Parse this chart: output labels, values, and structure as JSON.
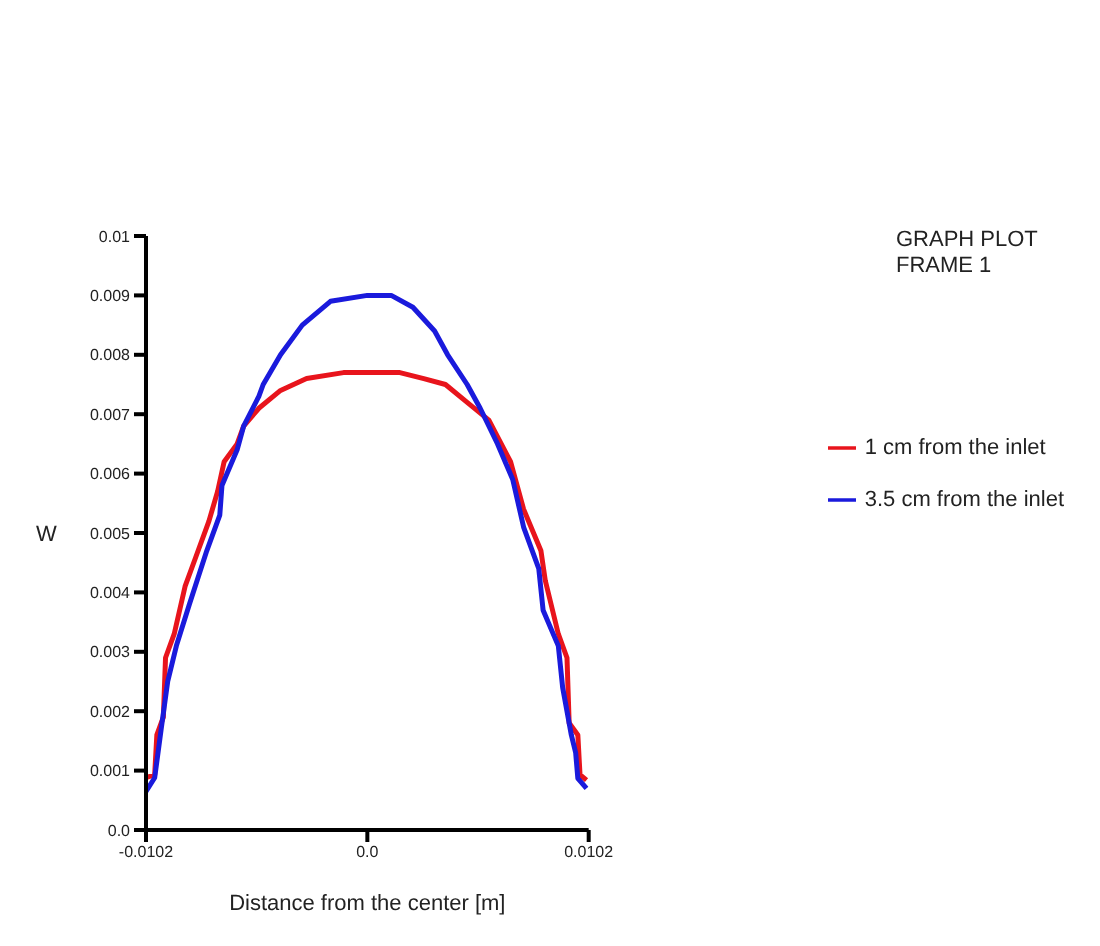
{
  "chart_data": {
    "type": "line",
    "xlabel": "Distance from the center [m]",
    "ylabel": "W",
    "annotations": [
      "GRAPH PLOT",
      "FRAME 1"
    ],
    "xlim": [
      -0.0102,
      0.0102
    ],
    "xticks": [
      -0.0102,
      {
        "value": 0,
        "label": "0.0"
      },
      0.0102
    ],
    "ylim": [
      0,
      0.01
    ],
    "yticks": [
      {
        "value": 0,
        "label": "0.0"
      },
      0.001,
      0.002,
      0.003,
      0.004,
      0.005,
      0.006,
      0.007,
      0.008,
      0.009,
      0.01
    ],
    "grid": false,
    "legend": "right",
    "marker": "none",
    "line_style": "solid",
    "series": [
      {
        "name": "1 cm from the inlet",
        "color": "#e8141c",
        "x": [
          -0.0102,
          -0.0098,
          -0.0097,
          -0.0094,
          -0.0093,
          -0.0089,
          -0.0084,
          -0.0079,
          -0.0073,
          -0.0069,
          -0.0066,
          -0.006,
          -0.0057,
          -0.005,
          -0.004,
          -0.0028,
          -0.0011,
          0,
          0.0015,
          0.0026,
          0.0036,
          0.0046,
          0.0056,
          0.0066,
          0.0072,
          0.008,
          0.0082,
          0.0088,
          0.0092,
          0.0093,
          0.0097,
          0.0098,
          0.0101
        ],
        "values": [
          0.00088,
          0.00093,
          0.0016,
          0.0019,
          0.0029,
          0.0033,
          0.0041,
          0.0046,
          0.0052,
          0.0057,
          0.0062,
          0.0065,
          0.0068,
          0.0071,
          0.0074,
          0.0076,
          0.0077,
          0.0077,
          0.0077,
          0.0076,
          0.0075,
          0.0072,
          0.0069,
          0.0062,
          0.0054,
          0.0047,
          0.0042,
          0.0033,
          0.0029,
          0.0018,
          0.0016,
          0.00093,
          0.00084
        ]
      },
      {
        "name": "3.5 cm from the inlet",
        "color": "#1a1adc",
        "x": [
          -0.0102,
          -0.0098,
          -0.0095,
          -0.0092,
          -0.0088,
          -0.0082,
          -0.0074,
          -0.0068,
          -0.0067,
          -0.006,
          -0.0057,
          -0.005,
          -0.0048,
          -0.004,
          -0.003,
          -0.0017,
          0,
          0.0011,
          0.0021,
          0.0031,
          0.0037,
          0.0046,
          0.0052,
          0.006,
          0.0067,
          0.0072,
          0.0079,
          0.0081,
          0.0088,
          0.009,
          0.0094,
          0.0096,
          0.0097,
          0.0101
        ],
        "values": [
          0.00065,
          0.00088,
          0.0017,
          0.0025,
          0.0031,
          0.0038,
          0.0047,
          0.0053,
          0.0058,
          0.0064,
          0.0068,
          0.0073,
          0.0075,
          0.008,
          0.0085,
          0.0089,
          0.009,
          0.009,
          0.0088,
          0.0084,
          0.008,
          0.0075,
          0.0071,
          0.0065,
          0.0059,
          0.0051,
          0.0044,
          0.0037,
          0.0031,
          0.0024,
          0.0016,
          0.0013,
          0.00087,
          0.0007
        ]
      }
    ]
  }
}
